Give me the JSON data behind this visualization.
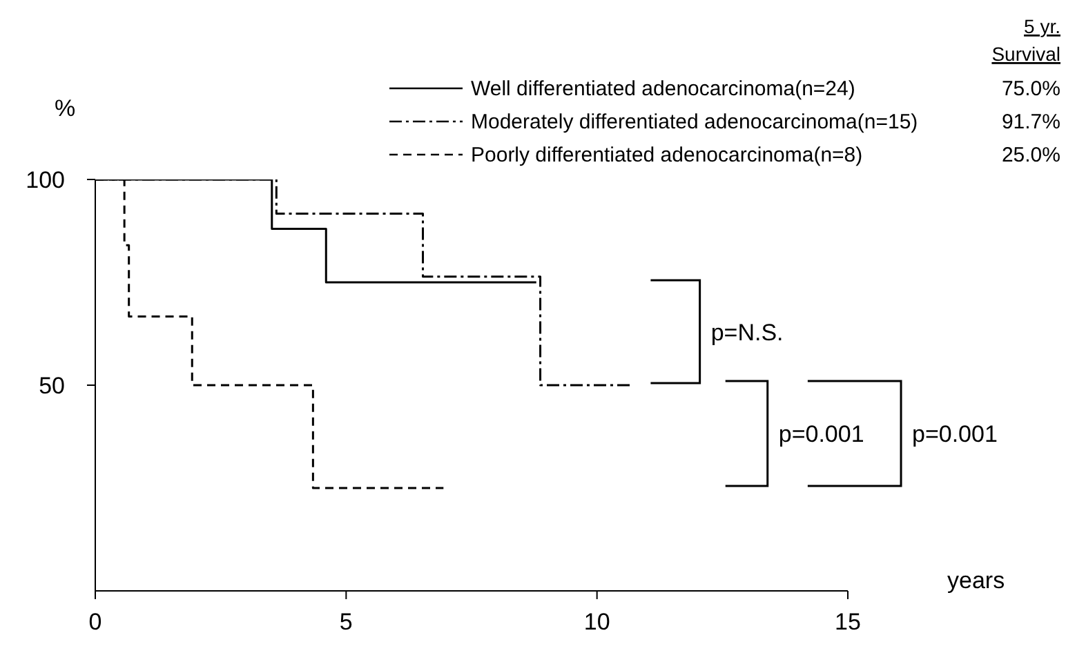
{
  "chart_data": {
    "type": "step",
    "xlabel": "years",
    "ylabel": "%",
    "xlim": [
      0,
      15
    ],
    "xticks": [
      0,
      5,
      10,
      15
    ],
    "ylim": [
      0,
      100
    ],
    "yticks": [
      50,
      100
    ],
    "legend": "top right",
    "marker": "none",
    "series": [
      {
        "name": "Well differentiated adenocarcinoma(n=24)",
        "color": "#000000",
        "line_style": "solid",
        "x": [
          0,
          3.52,
          4.6,
          8.79
        ],
        "values": [
          100,
          88,
          75,
          75
        ]
      },
      {
        "name": "Moderately differentiated adenocarcinoma(n=15)",
        "color": "#000000",
        "line_style": "dashdot",
        "x": [
          0,
          3.61,
          6.53,
          8.87,
          10.7
        ],
        "values": [
          100,
          91.7,
          76.4,
          50,
          50
        ]
      },
      {
        "name": "Poorly differentiated adenocarcinoma(n=8)",
        "color": "#000000",
        "line_style": "dashed",
        "x": [
          0,
          0.58,
          0.67,
          1.93,
          4.34,
          6.94
        ],
        "values": [
          100,
          84,
          66.7,
          50,
          25,
          25
        ]
      }
    ],
    "annotations": [
      "5 yr.\nSurvival",
      "75.0%",
      "91.7%",
      "25.0%",
      "p=N.S.",
      "p=0.001",
      "p=0.001"
    ]
  }
}
